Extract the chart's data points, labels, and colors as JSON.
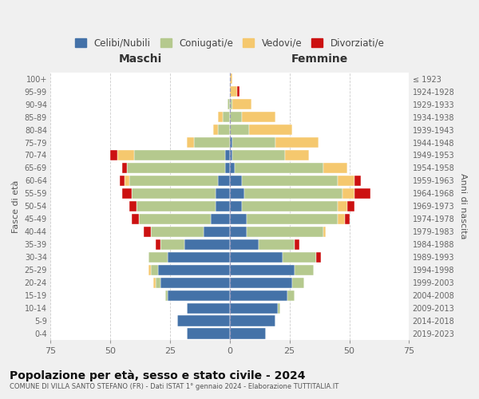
{
  "age_groups": [
    "0-4",
    "5-9",
    "10-14",
    "15-19",
    "20-24",
    "25-29",
    "30-34",
    "35-39",
    "40-44",
    "45-49",
    "50-54",
    "55-59",
    "60-64",
    "65-69",
    "70-74",
    "75-79",
    "80-84",
    "85-89",
    "90-94",
    "95-99",
    "100+"
  ],
  "birth_years": [
    "2019-2023",
    "2014-2018",
    "2009-2013",
    "2004-2008",
    "1999-2003",
    "1994-1998",
    "1989-1993",
    "1984-1988",
    "1979-1983",
    "1974-1978",
    "1969-1973",
    "1964-1968",
    "1959-1963",
    "1954-1958",
    "1949-1953",
    "1944-1948",
    "1939-1943",
    "1934-1938",
    "1929-1933",
    "1924-1928",
    "≤ 1923"
  ],
  "male": {
    "celibi": [
      18,
      22,
      18,
      26,
      29,
      30,
      26,
      19,
      11,
      8,
      6,
      6,
      5,
      2,
      2,
      0,
      0,
      0,
      0,
      0,
      0
    ],
    "coniugati": [
      0,
      0,
      0,
      1,
      2,
      3,
      8,
      10,
      22,
      30,
      33,
      35,
      37,
      41,
      38,
      15,
      5,
      3,
      1,
      0,
      0
    ],
    "vedovi": [
      0,
      0,
      0,
      0,
      1,
      1,
      0,
      0,
      0,
      0,
      0,
      0,
      2,
      0,
      7,
      3,
      2,
      2,
      0,
      0,
      0
    ],
    "divorziati": [
      0,
      0,
      0,
      0,
      0,
      0,
      0,
      2,
      3,
      3,
      3,
      4,
      2,
      2,
      3,
      0,
      0,
      0,
      0,
      0,
      0
    ]
  },
  "female": {
    "nubili": [
      15,
      19,
      20,
      24,
      26,
      27,
      22,
      12,
      7,
      7,
      5,
      6,
      5,
      2,
      1,
      1,
      0,
      0,
      0,
      0,
      0
    ],
    "coniugate": [
      0,
      0,
      1,
      3,
      5,
      8,
      14,
      15,
      32,
      38,
      40,
      41,
      40,
      37,
      22,
      18,
      8,
      5,
      1,
      0,
      0
    ],
    "vedove": [
      0,
      0,
      0,
      0,
      0,
      0,
      0,
      0,
      1,
      3,
      4,
      5,
      7,
      10,
      10,
      18,
      18,
      14,
      8,
      3,
      1
    ],
    "divorziate": [
      0,
      0,
      0,
      0,
      0,
      0,
      2,
      2,
      0,
      2,
      3,
      7,
      3,
      0,
      0,
      0,
      0,
      0,
      0,
      1,
      0
    ]
  },
  "colors": {
    "celibi_nubili": "#4472a8",
    "coniugati": "#b5c98e",
    "vedovi": "#f5c86e",
    "divorziati": "#cc1111"
  },
  "xlim": 75,
  "title": "Popolazione per età, sesso e stato civile - 2024",
  "subtitle": "COMUNE DI VILLA SANTO STEFANO (FR) - Dati ISTAT 1° gennaio 2024 - Elaborazione TUTTITALIA.IT",
  "ylabel_left": "Fasce di età",
  "ylabel_right": "Anni di nascita",
  "xlabel_left": "Maschi",
  "xlabel_right": "Femmine",
  "bg_color": "#f0f0f0",
  "plot_bg": "#ffffff"
}
